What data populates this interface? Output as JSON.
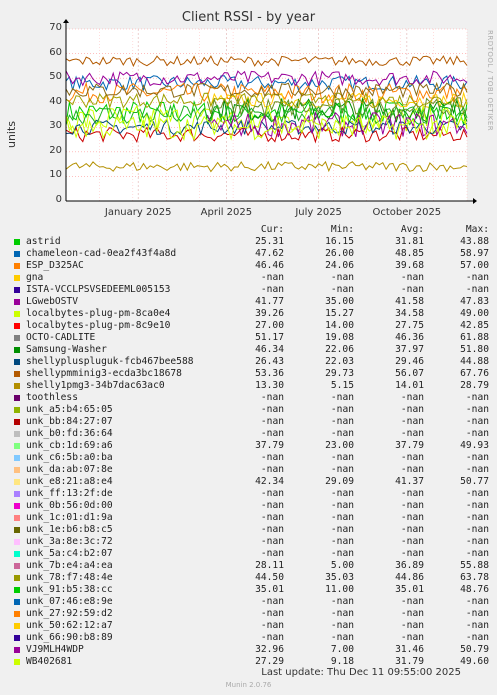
{
  "title": "Client RSSI - by year",
  "side_label": "RRDTOOL / TOBI OETIKER",
  "chart_data": {
    "type": "line",
    "title": "Client RSSI - by year",
    "ylabel": "units",
    "ylim": [
      0,
      70
    ],
    "yticks": [
      0,
      10,
      20,
      30,
      40,
      50,
      60,
      70
    ],
    "xlabels": [
      "January 2025",
      "April 2025",
      "July 2025",
      "October 2025"
    ],
    "grid": true,
    "series": [
      {
        "name": "astrid",
        "color": "#00cc00",
        "level": 36,
        "noise": 5
      },
      {
        "name": "chameleon-cad-0ea2f43f4a8d",
        "color": "#0066b3",
        "level": 48,
        "noise": 3
      },
      {
        "name": "ESP_D325AC",
        "color": "#ff8000",
        "level": 44,
        "noise": 4
      },
      {
        "name": "LGwebOSTV",
        "color": "#ffcc00",
        "level": 41,
        "noise": 3
      },
      {
        "name": "localbytes-plug-pm-8ca0e4",
        "color": "#ccff00",
        "level": 33,
        "noise": 6
      },
      {
        "name": "localbytes-plug-pm-8c9e10",
        "color": "#cc0000",
        "level": 27,
        "noise": 3
      },
      {
        "name": "OCTO-CADLITE",
        "color": "#990099",
        "level": 50,
        "noise": 3
      },
      {
        "name": "Samsung-Washer",
        "color": "#008f00",
        "level": 37,
        "noise": 5
      },
      {
        "name": "shellypluspluguk-fcb467bee588",
        "color": "#00487d",
        "level": 30,
        "noise": 3
      },
      {
        "name": "shellypmminig3-ecda3bc18678",
        "color": "#b35a00",
        "level": 57,
        "noise": 2
      },
      {
        "name": "shelly1pmg3-34b7dac63ac0",
        "color": "#b38f00",
        "level": 14,
        "noise": 2
      },
      {
        "name": "unk_cb:1d:69:a6",
        "color": "#6b8e23",
        "level": 38,
        "noise": 4
      },
      {
        "name": "unk_e8:21:a8:e4",
        "color": "#a0a000",
        "level": 41,
        "noise": 3
      },
      {
        "name": "unk_78:f7:48:4e",
        "color": "#8b6914",
        "level": 45,
        "noise": 3
      },
      {
        "name": "unk_91:b5:38:cc",
        "color": "#20b020",
        "level": 35,
        "noise": 4
      },
      {
        "name": "VJ9MLH4WDP",
        "color": "#990099",
        "level": 31,
        "noise": 5
      },
      {
        "name": "WB402681",
        "color": "#ccff00",
        "level": 30,
        "noise": 5
      }
    ]
  },
  "legend": {
    "headers": {
      "cur": "Cur:",
      "min": "Min:",
      "avg": "Avg:",
      "max": "Max:"
    },
    "rows": [
      {
        "name": "astrid",
        "color": "#00cc00",
        "cur": "25.31",
        "min": "16.15",
        "avg": "31.81",
        "max": "43.88"
      },
      {
        "name": "chameleon-cad-0ea2f43f4a8d",
        "color": "#0066b3",
        "cur": "47.62",
        "min": "26.00",
        "avg": "48.85",
        "max": "58.97"
      },
      {
        "name": "ESP_D325AC",
        "color": "#ff8000",
        "cur": "46.46",
        "min": "24.06",
        "avg": "39.68",
        "max": "57.00"
      },
      {
        "name": "gna",
        "color": "#ffcc00",
        "cur": "-nan",
        "min": "-nan",
        "avg": "-nan",
        "max": "-nan"
      },
      {
        "name": "ISTA-VCCLPSVSEDEEML005153",
        "color": "#330099",
        "cur": "-nan",
        "min": "-nan",
        "avg": "-nan",
        "max": "-nan"
      },
      {
        "name": "LGwebOSTV",
        "color": "#990099",
        "cur": "41.77",
        "min": "35.00",
        "avg": "41.58",
        "max": "47.83"
      },
      {
        "name": "localbytes-plug-pm-8ca0e4",
        "color": "#ccff00",
        "cur": "39.26",
        "min": "15.27",
        "avg": "34.58",
        "max": "49.00"
      },
      {
        "name": "localbytes-plug-pm-8c9e10",
        "color": "#ff0000",
        "cur": "27.00",
        "min": "14.00",
        "avg": "27.75",
        "max": "42.85"
      },
      {
        "name": "OCTO-CADLITE",
        "color": "#808080",
        "cur": "51.17",
        "min": "19.08",
        "avg": "46.36",
        "max": "61.88"
      },
      {
        "name": "Samsung-Washer",
        "color": "#008f00",
        "cur": "46.34",
        "min": "22.06",
        "avg": "37.97",
        "max": "51.80"
      },
      {
        "name": "shellypluspluguk-fcb467bee588",
        "color": "#00487d",
        "cur": "26.43",
        "min": "22.03",
        "avg": "29.46",
        "max": "44.88"
      },
      {
        "name": "shellypmminig3-ecda3bc18678",
        "color": "#b35a00",
        "cur": "53.36",
        "min": "29.73",
        "avg": "56.07",
        "max": "67.76"
      },
      {
        "name": "shelly1pmg3-34b7dac63ac0",
        "color": "#b38f00",
        "cur": "13.30",
        "min": "5.15",
        "avg": "14.01",
        "max": "28.79"
      },
      {
        "name": "toothless",
        "color": "#6b006b",
        "cur": "-nan",
        "min": "-nan",
        "avg": "-nan",
        "max": "-nan"
      },
      {
        "name": "unk_a5:b4:65:05",
        "color": "#8fb300",
        "cur": "-nan",
        "min": "-nan",
        "avg": "-nan",
        "max": "-nan"
      },
      {
        "name": "unk_bb:84:27:07",
        "color": "#b30000",
        "cur": "-nan",
        "min": "-nan",
        "avg": "-nan",
        "max": "-nan"
      },
      {
        "name": "unk_b0:fd:36:64",
        "color": "#bebebe",
        "cur": "-nan",
        "min": "-nan",
        "avg": "-nan",
        "max": "-nan"
      },
      {
        "name": "unk_cb:1d:69:a6",
        "color": "#80ff80",
        "cur": "37.79",
        "min": "23.00",
        "avg": "37.79",
        "max": "49.93"
      },
      {
        "name": "unk_c6:5b:a0:ba",
        "color": "#80c9ff",
        "cur": "-nan",
        "min": "-nan",
        "avg": "-nan",
        "max": "-nan"
      },
      {
        "name": "unk_da:ab:07:8e",
        "color": "#ffc080",
        "cur": "-nan",
        "min": "-nan",
        "avg": "-nan",
        "max": "-nan"
      },
      {
        "name": "unk_e8:21:a8:e4",
        "color": "#ffe680",
        "cur": "42.34",
        "min": "29.09",
        "avg": "41.37",
        "max": "50.77"
      },
      {
        "name": "unk_ff:13:2f:de",
        "color": "#aa80ff",
        "cur": "-nan",
        "min": "-nan",
        "avg": "-nan",
        "max": "-nan"
      },
      {
        "name": "unk_0b:56:0d:00",
        "color": "#ee00cc",
        "cur": "-nan",
        "min": "-nan",
        "avg": "-nan",
        "max": "-nan"
      },
      {
        "name": "unk_1c:01:d1:9a",
        "color": "#ff8080",
        "cur": "-nan",
        "min": "-nan",
        "avg": "-nan",
        "max": "-nan"
      },
      {
        "name": "unk_1e:b6:b8:c5",
        "color": "#666600",
        "cur": "-nan",
        "min": "-nan",
        "avg": "-nan",
        "max": "-nan"
      },
      {
        "name": "unk_3a:8e:3c:72",
        "color": "#ffbfff",
        "cur": "-nan",
        "min": "-nan",
        "avg": "-nan",
        "max": "-nan"
      },
      {
        "name": "unk_5a:c4:b2:07",
        "color": "#00ffcc",
        "cur": "-nan",
        "min": "-nan",
        "avg": "-nan",
        "max": "-nan"
      },
      {
        "name": "unk_7b:e4:a4:ea",
        "color": "#cc6699",
        "cur": "28.11",
        "min": "5.00",
        "avg": "36.89",
        "max": "55.88"
      },
      {
        "name": "unk_78:f7:48:4e",
        "color": "#999900",
        "cur": "44.50",
        "min": "35.03",
        "avg": "44.86",
        "max": "63.78"
      },
      {
        "name": "unk_91:b5:38:cc",
        "color": "#00cc00",
        "cur": "35.01",
        "min": "11.00",
        "avg": "35.01",
        "max": "48.76"
      },
      {
        "name": "unk_07:46:e8:9e",
        "color": "#0066b3",
        "cur": "-nan",
        "min": "-nan",
        "avg": "-nan",
        "max": "-nan"
      },
      {
        "name": "unk_27:92:59:d2",
        "color": "#ff8000",
        "cur": "-nan",
        "min": "-nan",
        "avg": "-nan",
        "max": "-nan"
      },
      {
        "name": "unk_50:62:12:a7",
        "color": "#ffcc00",
        "cur": "-nan",
        "min": "-nan",
        "avg": "-nan",
        "max": "-nan"
      },
      {
        "name": "unk_66:90:b8:89",
        "color": "#330099",
        "cur": "-nan",
        "min": "-nan",
        "avg": "-nan",
        "max": "-nan"
      },
      {
        "name": "VJ9MLH4WDP",
        "color": "#990099",
        "cur": "32.96",
        "min": "7.00",
        "avg": "31.46",
        "max": "50.79"
      },
      {
        "name": "WB402681",
        "color": "#ccff00",
        "cur": "27.29",
        "min": "9.18",
        "avg": "31.79",
        "max": "49.60"
      }
    ]
  },
  "footer": {
    "last_update": "Last update:  Thu Dec 11 09:55:00 2025",
    "munin": "Munin 2.0.76"
  }
}
